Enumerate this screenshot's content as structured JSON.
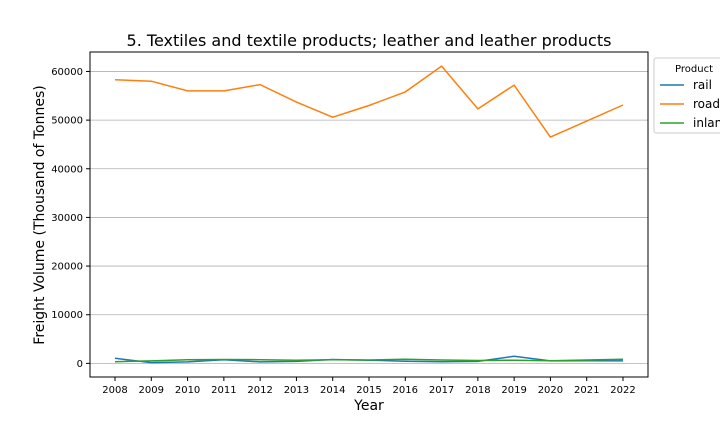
{
  "chart_data": {
    "type": "line",
    "title": "5. Textiles and textile products; leather and leather products",
    "xlabel": "Year",
    "ylabel": "Freight Volume (Thousand of Tonnes)",
    "x": [
      "2008",
      "2009",
      "2010",
      "2011",
      "2012",
      "2013",
      "2014",
      "2015",
      "2016",
      "2017",
      "2018",
      "2019",
      "2020",
      "2021",
      "2022"
    ],
    "ylim": [
      -2800,
      64000
    ],
    "yticks": [
      0,
      10000,
      20000,
      30000,
      40000,
      50000,
      60000
    ],
    "grid": "horizontal",
    "legend": {
      "title": "Product",
      "placement": "outside-top-right"
    },
    "series": [
      {
        "name": "rail",
        "color": "#1f77b4",
        "values": [
          1050,
          150,
          300,
          750,
          300,
          400,
          800,
          650,
          450,
          350,
          400,
          1450,
          500,
          550,
          500
        ]
      },
      {
        "name": "road",
        "color": "#ff7f0e",
        "values": [
          58300,
          58000,
          56000,
          56000,
          57300,
          53700,
          50600,
          53000,
          55800,
          61100,
          52300,
          57200,
          46500,
          49800,
          53100
        ]
      },
      {
        "name": "inland waterway",
        "color": "#2ca02c",
        "values": [
          350,
          500,
          750,
          800,
          750,
          650,
          750,
          700,
          850,
          700,
          600,
          650,
          550,
          700,
          850
        ]
      }
    ]
  }
}
